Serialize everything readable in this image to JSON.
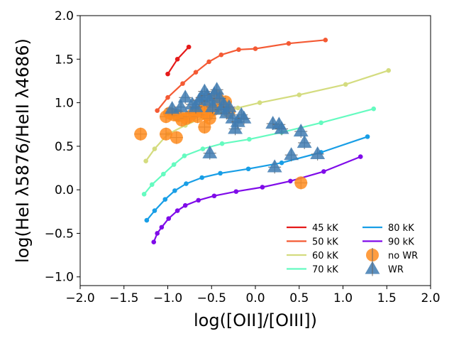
{
  "chart_data": {
    "type": "scatter",
    "title": "",
    "xlabel": "log([OII]/[OIII])",
    "ylabel": "log(HeI λ5876/HeII λ4686)",
    "xlim": [
      -2.0,
      2.0
    ],
    "ylim": [
      -1.1,
      2.0
    ],
    "xticks": [
      -2.0,
      -1.5,
      -1.0,
      -0.5,
      0.0,
      0.5,
      1.0,
      1.5,
      2.0
    ],
    "yticks": [
      -1.0,
      -0.5,
      0.0,
      0.5,
      1.0,
      1.5,
      2.0
    ],
    "xtick_labels": [
      "−2.0",
      "−1.5",
      "−1.0",
      "−0.5",
      "0.0",
      "0.5",
      "1.0",
      "1.5",
      "2.0"
    ],
    "ytick_labels": [
      "−1.0",
      "−0.5",
      "0.0",
      "0.5",
      "1.0",
      "1.5",
      "2.0"
    ],
    "legend_position": "lower-right",
    "model_lines": [
      {
        "name": "45 kK",
        "color": "#e51a1a",
        "x": [
          -1.0,
          -0.89,
          -0.76
        ],
        "y": [
          1.33,
          1.5,
          1.64
        ]
      },
      {
        "name": "50 kK",
        "color": "#f45a34",
        "x": [
          -1.12,
          -1.0,
          -0.83,
          -0.68,
          -0.53,
          -0.39,
          -0.19,
          0.0,
          0.38,
          0.8
        ],
        "y": [
          0.91,
          1.06,
          1.22,
          1.35,
          1.47,
          1.55,
          1.61,
          1.62,
          1.68,
          1.72
        ]
      },
      {
        "name": "60 kK",
        "color": "#d4dc7f",
        "x": [
          -1.25,
          -1.15,
          -1.0,
          -0.8,
          -0.6,
          -0.4,
          -0.2,
          0.05,
          0.5,
          1.03,
          1.52
        ],
        "y": [
          0.33,
          0.47,
          0.64,
          0.74,
          0.83,
          0.89,
          0.94,
          1.0,
          1.09,
          1.21,
          1.37
        ]
      },
      {
        "name": "70 kK",
        "color": "#65fbc0",
        "x": [
          -1.27,
          -1.18,
          -1.05,
          -0.93,
          -0.81,
          -0.6,
          -0.38,
          -0.07,
          0.3,
          0.75,
          1.35
        ],
        "y": [
          -0.05,
          0.06,
          0.18,
          0.29,
          0.39,
          0.47,
          0.53,
          0.58,
          0.66,
          0.77,
          0.93
        ]
      },
      {
        "name": "80 kK",
        "color": "#189ee6",
        "x": [
          -1.24,
          -1.15,
          -1.03,
          -0.92,
          -0.79,
          -0.61,
          -0.4,
          -0.08,
          0.3,
          0.75,
          1.28
        ],
        "y": [
          -0.35,
          -0.24,
          -0.11,
          -0.01,
          0.07,
          0.14,
          0.19,
          0.24,
          0.31,
          0.43,
          0.61
        ]
      },
      {
        "name": "90 kK",
        "color": "#7f0be9",
        "x": [
          -1.16,
          -1.12,
          -1.07,
          -0.99,
          -0.89,
          -0.8,
          -0.65,
          -0.47,
          -0.22,
          0.08,
          0.4,
          0.78,
          1.2
        ],
        "y": [
          -0.6,
          -0.5,
          -0.43,
          -0.33,
          -0.24,
          -0.18,
          -0.12,
          -0.07,
          -0.02,
          0.03,
          0.1,
          0.21,
          0.38
        ]
      }
    ],
    "scatter_series": [
      {
        "name": "no WR",
        "marker": "circle",
        "color": "#ff8c1f",
        "points": [
          [
            -1.31,
            0.64
          ],
          [
            -1.02,
            0.64
          ],
          [
            -0.9,
            0.6
          ],
          [
            -1.02,
            0.84
          ],
          [
            -0.98,
            0.88
          ],
          [
            -0.93,
            0.86
          ],
          [
            -0.88,
            0.85
          ],
          [
            -0.84,
            0.8
          ],
          [
            -0.79,
            0.82
          ],
          [
            -0.75,
            0.84
          ],
          [
            -0.7,
            0.88
          ],
          [
            -0.66,
            0.84
          ],
          [
            -0.62,
            0.9
          ],
          [
            -0.58,
            0.96
          ],
          [
            -0.55,
            0.86
          ],
          [
            -0.52,
            0.82
          ],
          [
            -0.48,
            0.92
          ],
          [
            -0.44,
            1.08
          ],
          [
            -0.4,
            0.98
          ],
          [
            -0.34,
            1.01
          ],
          [
            -0.3,
            0.9
          ],
          [
            -0.58,
            0.72
          ],
          [
            0.52,
            0.08
          ]
        ]
      },
      {
        "name": "WR",
        "marker": "triangle",
        "color": "#3f7bb2",
        "points": [
          [
            -0.95,
            0.93
          ],
          [
            -0.85,
            0.95
          ],
          [
            -0.8,
            1.06
          ],
          [
            -0.72,
            0.98
          ],
          [
            -0.68,
            0.95
          ],
          [
            -0.64,
            1.03
          ],
          [
            -0.61,
            1.06
          ],
          [
            -0.58,
            1.13
          ],
          [
            -0.55,
            1.08
          ],
          [
            -0.52,
            1.02
          ],
          [
            -0.49,
            0.95
          ],
          [
            -0.47,
            1.1
          ],
          [
            -0.44,
            1.15
          ],
          [
            -0.41,
            1.05
          ],
          [
            -0.39,
            0.92
          ],
          [
            -0.36,
            0.98
          ],
          [
            -0.33,
            0.88
          ],
          [
            -0.3,
            0.95
          ],
          [
            -0.26,
            0.82
          ],
          [
            -0.23,
            0.7
          ],
          [
            -0.2,
            0.78
          ],
          [
            -0.16,
            0.86
          ],
          [
            -0.13,
            0.82
          ],
          [
            -0.52,
            0.42
          ],
          [
            0.2,
            0.76
          ],
          [
            0.27,
            0.75
          ],
          [
            0.3,
            0.7
          ],
          [
            0.52,
            0.67
          ],
          [
            0.56,
            0.54
          ],
          [
            0.22,
            0.26
          ],
          [
            0.41,
            0.4
          ],
          [
            0.71,
            0.41
          ]
        ]
      }
    ]
  }
}
